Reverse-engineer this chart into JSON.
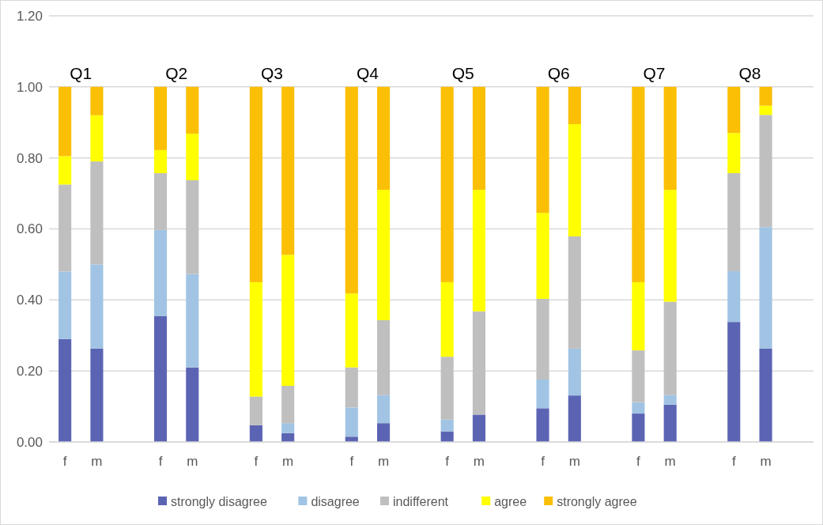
{
  "chart_data": {
    "type": "bar",
    "stacked": true,
    "categories": [
      "f",
      "m",
      null,
      "f",
      "m",
      null,
      "f",
      "m",
      null,
      "f",
      "m",
      null,
      "f",
      "m",
      null,
      "f",
      "m",
      null,
      "f",
      "m",
      null,
      "f",
      "m",
      null
    ],
    "series": [
      {
        "name": "strongly disagree",
        "color": "#5b64b3",
        "values": [
          0.29,
          0.263,
          null,
          0.355,
          0.21,
          null,
          0.047,
          0.025,
          null,
          0.015,
          0.053,
          null,
          0.03,
          0.077,
          null,
          0.095,
          0.131,
          null,
          0.08,
          0.105,
          null,
          0.338,
          0.263,
          null
        ]
      },
      {
        "name": "disagree",
        "color": "#a1c4e4",
        "values": [
          0.19,
          0.237,
          null,
          0.242,
          0.263,
          null,
          0,
          0.028,
          null,
          0.082,
          0.079,
          null,
          0.033,
          0,
          null,
          0.081,
          0.132,
          null,
          0.032,
          0.027,
          null,
          0.143,
          0.342,
          null
        ]
      },
      {
        "name": "indifferent",
        "color": "#bfbfbf",
        "values": [
          0.245,
          0.29,
          null,
          0.16,
          0.264,
          null,
          0.081,
          0.105,
          null,
          0.113,
          0.211,
          null,
          0.177,
          0.291,
          null,
          0.227,
          0.316,
          null,
          0.146,
          0.263,
          null,
          0.276,
          0.316,
          null
        ]
      },
      {
        "name": "agree",
        "color": "#ffff00",
        "values": [
          0.08,
          0.13,
          null,
          0.065,
          0.131,
          null,
          0.322,
          0.369,
          null,
          0.208,
          0.367,
          null,
          0.21,
          0.342,
          null,
          0.242,
          0.316,
          null,
          0.192,
          0.315,
          null,
          0.113,
          0.026,
          null
        ]
      },
      {
        "name": "strongly agree",
        "color": "#fbbf05",
        "values": [
          0.195,
          0.08,
          null,
          0.178,
          0.132,
          null,
          0.55,
          0.473,
          null,
          0.582,
          0.29,
          null,
          0.55,
          0.29,
          null,
          0.355,
          0.105,
          null,
          0.55,
          0.29,
          null,
          0.13,
          0.053,
          null
        ]
      }
    ],
    "annotations": [
      "Q1",
      "Q2",
      "Q3",
      "Q4",
      "Q5",
      "Q6",
      "Q7",
      "Q8"
    ],
    "ylim": [
      0,
      1.2
    ],
    "yticks": [
      {
        "value": 0,
        "label": "0.00"
      },
      {
        "value": 0.2,
        "label": "0.20"
      },
      {
        "value": 0.4,
        "label": "0.40"
      },
      {
        "value": 0.6,
        "label": "0.60"
      },
      {
        "value": 0.8,
        "label": "0.80"
      },
      {
        "value": 1,
        "label": "1.00"
      },
      {
        "value": 1.2,
        "label": "1.20"
      }
    ],
    "grid": "y",
    "legend": "bottom"
  }
}
